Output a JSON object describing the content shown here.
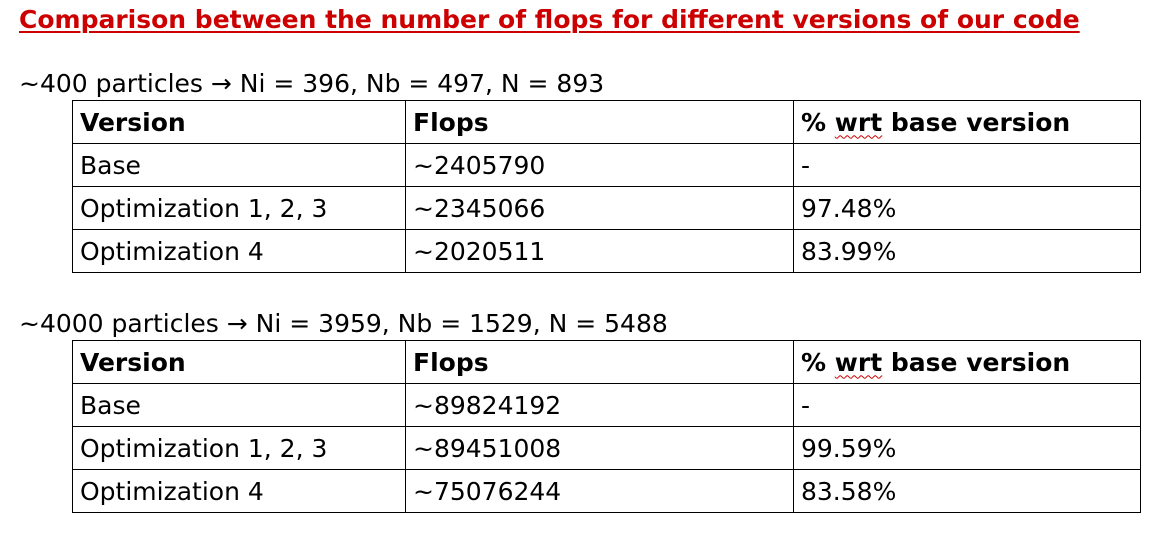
{
  "colors": {
    "title": "#cc0000",
    "text": "#000000",
    "border": "#000000",
    "spellcheck": "#cc0000"
  },
  "title": "Comparison between the number of flops for different versions of our code",
  "sections": [
    {
      "label": "~400 particles → Ni = 396, Nb = 497, N = 893",
      "headers": {
        "version": "Version",
        "flops": "Flops",
        "pct_word": "%",
        "pct_wrt": "wrt",
        "pct_rest": "base version"
      },
      "rows": [
        {
          "version": "Base",
          "flops": "~2405790",
          "pct": "-"
        },
        {
          "version": "Optimization 1, 2, 3",
          "flops": "~2345066",
          "pct": "97.48%"
        },
        {
          "version": "Optimization 4",
          "flops": "~2020511",
          "pct": "83.99%"
        }
      ]
    },
    {
      "label": "~4000 particles → Ni = 3959, Nb = 1529, N = 5488",
      "headers": {
        "version": "Version",
        "flops": "Flops",
        "pct_word": "%",
        "pct_wrt": "wrt",
        "pct_rest": "base version"
      },
      "rows": [
        {
          "version": "Base",
          "flops": "~89824192",
          "pct": "-"
        },
        {
          "version": "Optimization 1, 2, 3",
          "flops": "~89451008",
          "pct": "99.59%"
        },
        {
          "version": "Optimization 4",
          "flops": "~75076244",
          "pct": "83.58%"
        }
      ]
    }
  ]
}
